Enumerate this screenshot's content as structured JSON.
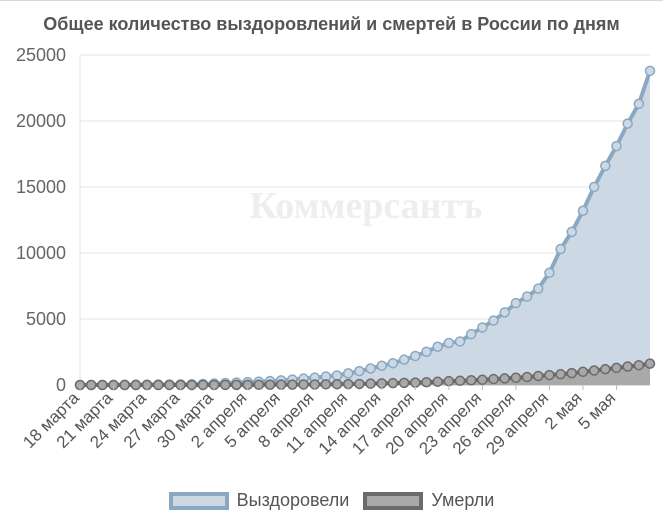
{
  "chart_data": {
    "type": "line",
    "title": "Общее количество выздоровлений и смертей в России по дням",
    "watermark": "Коммерсантъ",
    "x_labels": [
      "18 марта",
      "21 марта",
      "24 марта",
      "27 марта",
      "30 марта",
      "2 апреля",
      "5 апреля",
      "8 апреля",
      "11 апреля",
      "14 апреля",
      "17 апреля",
      "20 апреля",
      "23 апреля",
      "26 апреля",
      "29 апреля",
      "2 мая",
      "5 мая"
    ],
    "label_every": 3,
    "n_points": 52,
    "ylim": [
      0,
      25000
    ],
    "yticks": [
      0,
      5000,
      10000,
      15000,
      20000,
      25000
    ],
    "grid": true,
    "legend_position": "bottom",
    "series": [
      {
        "name": "Выздоровели",
        "line_color": "#8aa8c2",
        "fill_color": "#ccd9e4",
        "values": [
          0,
          5,
          10,
          15,
          20,
          25,
          30,
          35,
          40,
          50,
          60,
          80,
          110,
          150,
          180,
          220,
          260,
          300,
          350,
          410,
          490,
          560,
          640,
          720,
          880,
          1050,
          1250,
          1460,
          1650,
          1920,
          2200,
          2520,
          2900,
          3180,
          3300,
          3850,
          4360,
          4880,
          5500,
          6200,
          6700,
          7300,
          8500,
          10300,
          11600,
          13200,
          15000,
          16600,
          18100,
          19800,
          21300,
          23800
        ]
      },
      {
        "name": "Умерли",
        "line_color": "#6b6b6b",
        "fill_color": "#a9a9a9",
        "values": [
          0,
          0,
          0,
          0,
          0,
          1,
          1,
          1,
          2,
          2,
          3,
          3,
          4,
          6,
          8,
          12,
          15,
          20,
          25,
          30,
          35,
          40,
          50,
          60,
          70,
          80,
          100,
          120,
          140,
          160,
          180,
          210,
          250,
          290,
          320,
          360,
          400,
          450,
          500,
          550,
          610,
          680,
          750,
          820,
          900,
          1000,
          1100,
          1200,
          1300,
          1400,
          1500,
          1620
        ]
      }
    ]
  }
}
